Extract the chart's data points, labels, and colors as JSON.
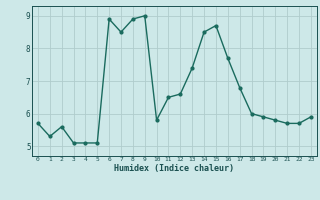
{
  "x": [
    0,
    1,
    2,
    3,
    4,
    5,
    6,
    7,
    8,
    9,
    10,
    11,
    12,
    13,
    14,
    15,
    16,
    17,
    18,
    19,
    20,
    21,
    22,
    23
  ],
  "y": [
    5.7,
    5.3,
    5.6,
    5.1,
    5.1,
    5.1,
    8.9,
    8.5,
    8.9,
    9.0,
    5.8,
    6.5,
    6.6,
    7.4,
    8.5,
    8.7,
    7.7,
    6.8,
    6.0,
    5.9,
    5.8,
    5.7,
    5.7,
    5.9
  ],
  "xlabel": "Humidex (Indice chaleur)",
  "ylim": [
    4.7,
    9.3
  ],
  "xlim": [
    -0.5,
    23.5
  ],
  "line_color": "#1a6b5e",
  "marker_color": "#1a6b5e",
  "bg_color": "#cde8e8",
  "grid_color": "#b0cccc",
  "axis_label_color": "#1a5050",
  "yticks": [
    5,
    6,
    7,
    8,
    9
  ],
  "xticks": [
    0,
    1,
    2,
    3,
    4,
    5,
    6,
    7,
    8,
    9,
    10,
    11,
    12,
    13,
    14,
    15,
    16,
    17,
    18,
    19,
    20,
    21,
    22,
    23
  ]
}
